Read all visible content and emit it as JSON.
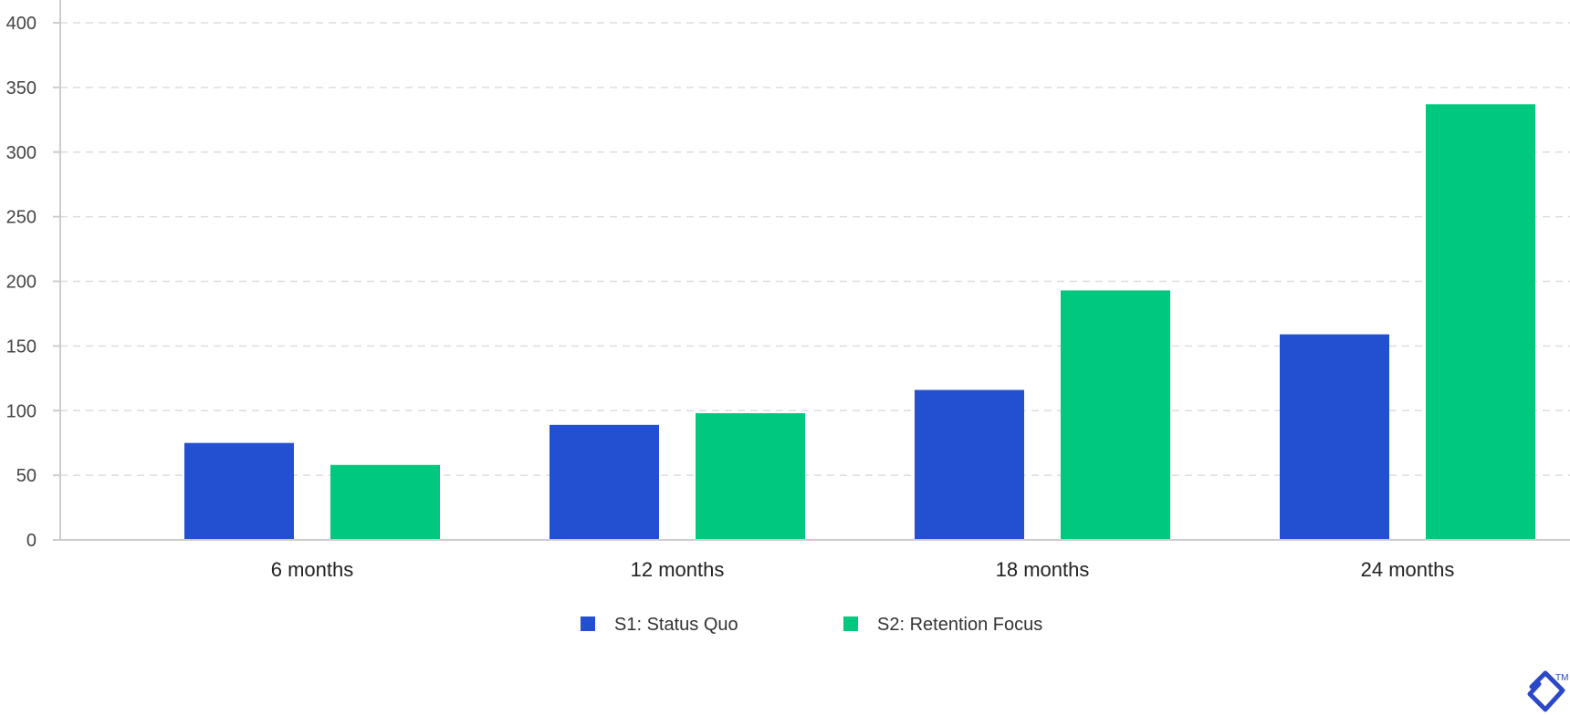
{
  "colors": {
    "s1": "#2250d0",
    "s2": "#00c97f",
    "grid": "#dddddd",
    "axis": "#cccccc",
    "logo": "#2a48c8"
  },
  "logo": {
    "icon": "toptal-logo-icon",
    "trademark": "TM"
  },
  "chart_data": {
    "type": "bar",
    "title": "",
    "xlabel": "",
    "ylabel": "",
    "categories": [
      "6 months",
      "12 months",
      "18 months",
      "24 months"
    ],
    "series": [
      {
        "name": "S1: Status Quo",
        "color": "#2250d0",
        "values": [
          75,
          89,
          116,
          159
        ]
      },
      {
        "name": "S2: Retention Focus",
        "color": "#00c97f",
        "values": [
          58,
          98,
          193,
          337
        ]
      }
    ],
    "ylim": [
      0,
      400
    ],
    "yticks": [
      0,
      50,
      100,
      150,
      200,
      250,
      300,
      350,
      400
    ],
    "grid": true,
    "legend": "bottom-center"
  }
}
